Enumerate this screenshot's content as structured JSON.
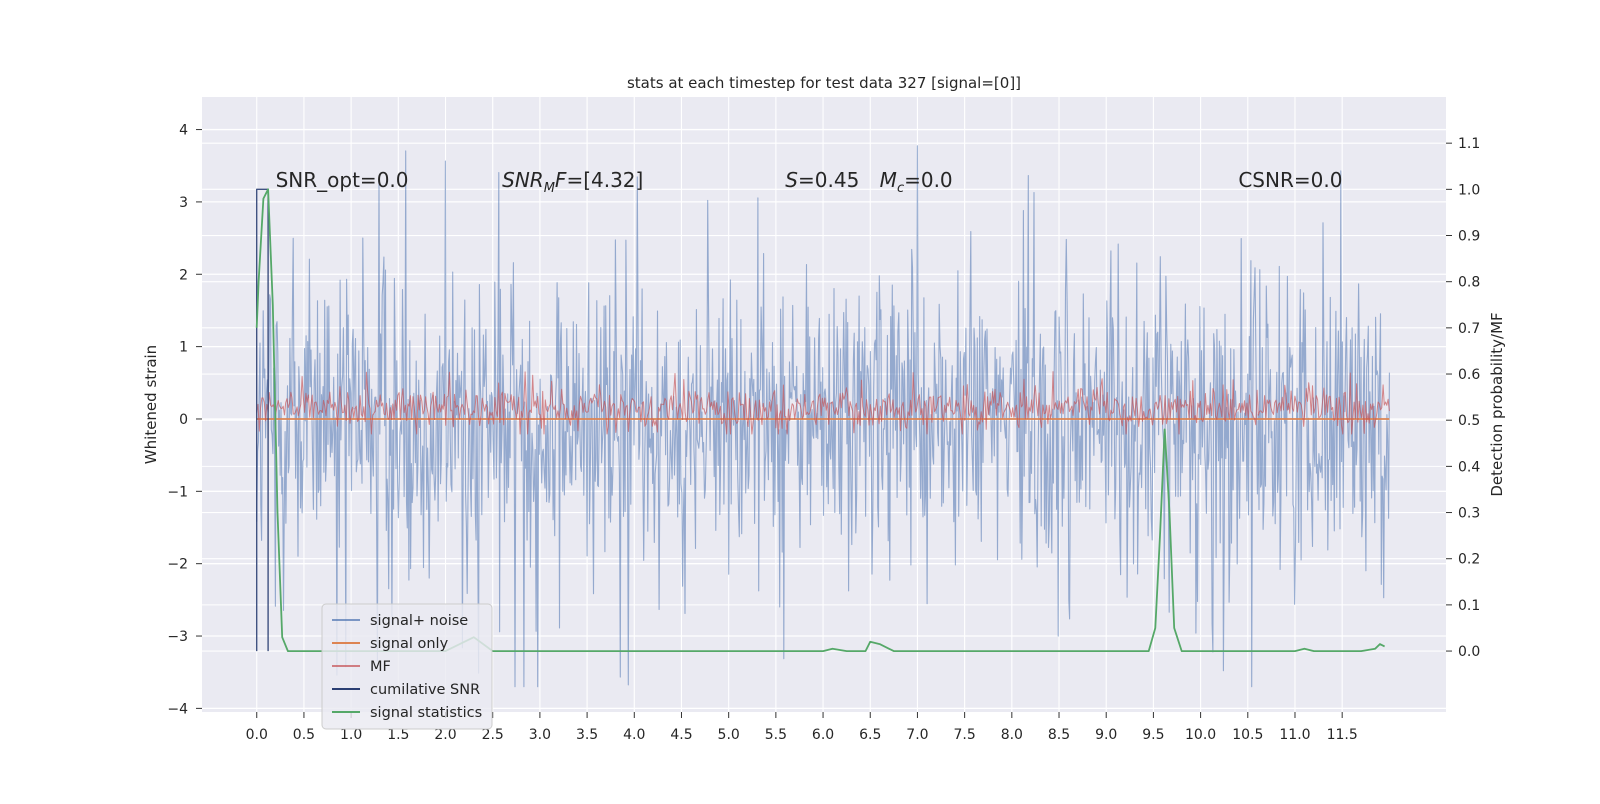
{
  "chart_data": {
    "type": "line",
    "title": "stats at each timestep for test data 327 [signal=[0]]",
    "xlabel": "",
    "ylabel": "Whitened strain",
    "y2label": "Detection probability/MF",
    "xlim": [
      -0.58,
      12.6
    ],
    "ylim": [
      -4.05,
      4.45
    ],
    "y2lim": [
      -0.132,
      1.2
    ],
    "x_ticks": [
      "0.0",
      "0.5",
      "1.0",
      "1.5",
      "2.0",
      "2.5",
      "3.0",
      "3.5",
      "4.0",
      "4.5",
      "5.0",
      "5.5",
      "6.0",
      "6.5",
      "7.0",
      "7.5",
      "8.0",
      "8.5",
      "9.0",
      "9.5",
      "10.0",
      "10.5",
      "11.0",
      "11.5"
    ],
    "y_ticks": [
      "4",
      "3",
      "2",
      "1",
      "0",
      "−1",
      "−2",
      "−3",
      "−4"
    ],
    "y2_ticks": [
      "1.1",
      "1.0",
      "0.9",
      "0.8",
      "0.7",
      "0.6",
      "0.5",
      "0.4",
      "0.3",
      "0.2",
      "0.1",
      "0.0"
    ],
    "grid": true,
    "legend_position": "lower-left",
    "annotations": [
      {
        "text": "SNR_opt=0.0",
        "x": 0.2,
        "y": 3.3
      },
      {
        "text": "SNR_MF=[4.32]",
        "x": 2.6,
        "y": 3.3
      },
      {
        "text": "S=0.45",
        "x": 5.6,
        "y": 3.3
      },
      {
        "text": "M_c=0.0",
        "x": 6.6,
        "y": 3.3
      },
      {
        "text": "CSNR=0.0",
        "x": 10.4,
        "y": 3.3
      }
    ],
    "series": [
      {
        "name": "signal+ noise",
        "color": "#4c72b0",
        "axis": "left",
        "kind": "noise",
        "x_range": [
          0.0,
          12.0
        ],
        "envelope_y": [
          -3.7,
          4.1
        ],
        "typical_y": [
          -2.2,
          2.2
        ]
      },
      {
        "name": "signal only",
        "color": "#dd8452",
        "axis": "left",
        "x": [
          0.0,
          12.0
        ],
        "values": [
          0.0,
          0.0
        ]
      },
      {
        "name": "MF",
        "color": "#c44e52",
        "axis": "right",
        "kind": "noise",
        "x_range": [
          0.0,
          12.0
        ],
        "envelope_y": [
          0.47,
          0.64
        ],
        "typical_y": [
          0.48,
          0.57
        ]
      },
      {
        "name": "cumilative SNR",
        "color": "#2b3f73",
        "axis": "right",
        "x": [
          0.0,
          0.0,
          0.12,
          0.12
        ],
        "values": [
          0.0,
          1.0,
          1.0,
          0.0
        ]
      },
      {
        "name": "signal statistics",
        "color": "#55a868",
        "axis": "right",
        "x": [
          0.0,
          0.02,
          0.07,
          0.12,
          0.17,
          0.22,
          0.27,
          0.33,
          0.5,
          1.0,
          2.0,
          2.3,
          2.5,
          2.6,
          3.0,
          4.0,
          5.0,
          5.5,
          6.0,
          6.1,
          6.25,
          6.45,
          6.5,
          6.6,
          6.75,
          6.9,
          7.5,
          8.0,
          8.5,
          9.0,
          9.45,
          9.52,
          9.57,
          9.62,
          9.67,
          9.72,
          9.8,
          10.0,
          11.0,
          11.1,
          11.2,
          11.7,
          11.85,
          11.9,
          11.95
        ],
        "values": [
          0.7,
          0.8,
          0.98,
          1.0,
          0.75,
          0.3,
          0.03,
          0.0,
          0.0,
          0.0,
          0.0,
          0.03,
          0.0,
          0.0,
          0.0,
          0.0,
          0.0,
          0.0,
          0.0,
          0.005,
          0.0,
          0.0,
          0.02,
          0.015,
          0.0,
          0.0,
          0.0,
          0.0,
          0.0,
          0.0,
          0.0,
          0.05,
          0.25,
          0.48,
          0.3,
          0.05,
          0.0,
          0.0,
          0.0,
          0.005,
          0.0,
          0.0,
          0.005,
          0.015,
          0.01
        ]
      }
    ]
  }
}
